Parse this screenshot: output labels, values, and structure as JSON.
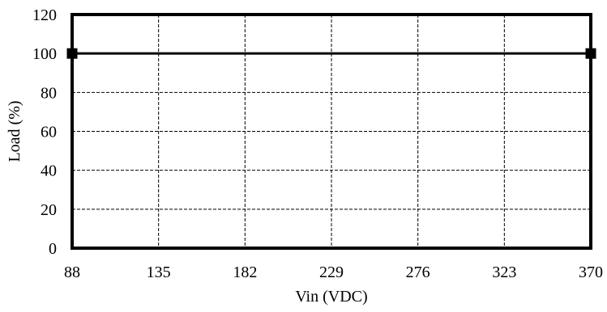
{
  "chart_data": {
    "type": "line",
    "title": "",
    "xlabel": "Vin (VDC)",
    "ylabel": "Load (%)",
    "x_ticks": [
      "88",
      "135",
      "182",
      "229",
      "276",
      "323",
      "370"
    ],
    "y_ticks": [
      "0",
      "20",
      "40",
      "60",
      "80",
      "100",
      "120"
    ],
    "xlim": [
      88,
      370
    ],
    "ylim": [
      0,
      120
    ],
    "grid": true,
    "legend": "none",
    "series": [
      {
        "x": [
          88,
          370
        ],
        "y": [
          100,
          100
        ],
        "color": "#000000",
        "marker": "square"
      }
    ]
  }
}
